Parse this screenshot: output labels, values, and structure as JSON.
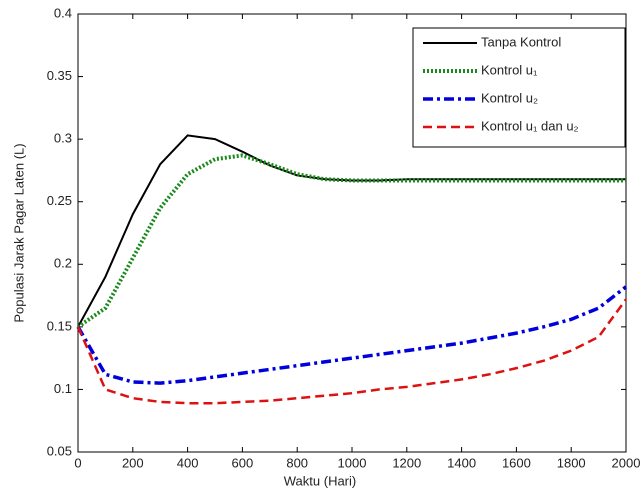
{
  "chart_data": {
    "type": "line",
    "xlabel": "Waktu (Hari)",
    "ylabel": "Populasi Jarak Pagar Laten (L)",
    "x": [
      0,
      100,
      200,
      300,
      400,
      500,
      600,
      700,
      800,
      900,
      1000,
      1100,
      1200,
      1300,
      1400,
      1500,
      1600,
      1700,
      1800,
      1900,
      2000
    ],
    "series": [
      {
        "name": "Tanpa Kontrol",
        "color": "#000000",
        "dash": "solid",
        "values": [
          0.15,
          0.19,
          0.24,
          0.28,
          0.303,
          0.3,
          0.29,
          0.279,
          0.271,
          0.268,
          0.267,
          0.267,
          0.268,
          0.268,
          0.268,
          0.268,
          0.268,
          0.268,
          0.268,
          0.268,
          0.268
        ]
      },
      {
        "name": "Kontrol u₁",
        "color": "#1a8a1a",
        "dash": "dotted",
        "values": [
          0.15,
          0.165,
          0.205,
          0.245,
          0.272,
          0.284,
          0.287,
          0.28,
          0.272,
          0.268,
          0.267,
          0.267,
          0.267,
          0.267,
          0.267,
          0.267,
          0.267,
          0.267,
          0.267,
          0.267,
          0.267
        ]
      },
      {
        "name": "Kontrol u₂",
        "color": "#0000dd",
        "dash": "dashdot",
        "values": [
          0.15,
          0.112,
          0.106,
          0.105,
          0.107,
          0.11,
          0.113,
          0.116,
          0.119,
          0.122,
          0.125,
          0.128,
          0.131,
          0.134,
          0.137,
          0.141,
          0.145,
          0.15,
          0.156,
          0.165,
          0.182
        ]
      },
      {
        "name": "Kontrol u₁ dan u₂",
        "color": "#dd1111",
        "dash": "dashed",
        "values": [
          0.15,
          0.1,
          0.093,
          0.09,
          0.089,
          0.089,
          0.09,
          0.091,
          0.093,
          0.095,
          0.097,
          0.1,
          0.102,
          0.105,
          0.108,
          0.112,
          0.117,
          0.123,
          0.131,
          0.142,
          0.172
        ]
      }
    ],
    "xlim": [
      0,
      2000
    ],
    "xticks": [
      0,
      200,
      400,
      600,
      800,
      1000,
      1200,
      1400,
      1600,
      1800,
      2000
    ],
    "ylim": [
      0.05,
      0.4
    ],
    "yticks": [
      0.05,
      0.1,
      0.15,
      0.2,
      0.25,
      0.3,
      0.35,
      0.4
    ],
    "legend": "upper-right"
  }
}
